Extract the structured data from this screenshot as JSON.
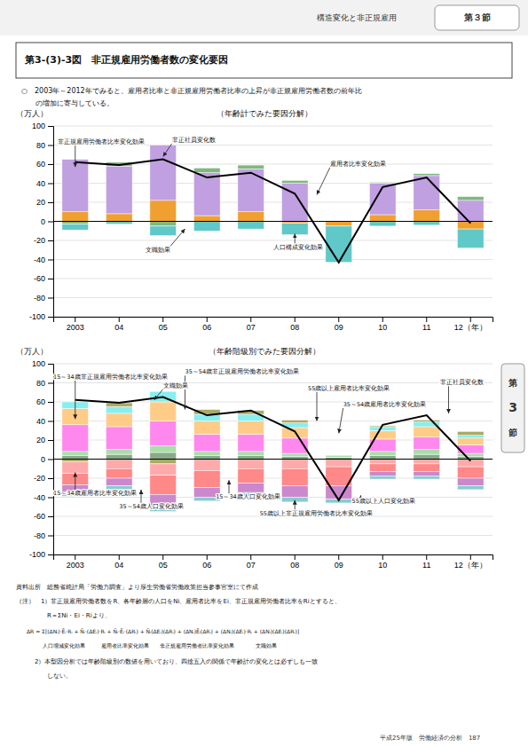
{
  "header_text": "構造変化と非正規雇用",
  "header_badge": "第３節",
  "title_box": "第3-(3)-3図　非正規雇用労働者数の変化要因",
  "bullet_text": [
    "○　2003年～2012年でみると、雇用者比率と非正規雇用労働者比率の上昇が非正規雇用労働者数の前年比",
    "　　の増加に寄与している。"
  ],
  "notes": [
    "資料出所　総務省統計局「労働力調査」より厚生労働省労働政策担当参事官室にて作成",
    "（注）　1）非正規雇用労働者数をR、各年齢層の人口をNi、雇用者比率をEi、非正規雇用労働者比率をRiとすると、",
    "　　　　　R＝ΣNi・Ei・Riより、",
    "ΔR = Σ[(ΔNᵢ)·Ēᵢ·Rᵢ + N̄ᵢ·(ΔEᵢ)·Rᵢ + N̄ᵢ·Ēᵢ·(ΔRᵢ) + N̄ᵢ(ΔEᵢ)(ΔRᵢ) + (ΔNᵢ)Ēᵢ(ΔRᵢ) + (ΔNᵢ)(ΔEᵢ)·Rᵢ + (ΔNᵢ)(ΔEᵢ)(ΔRᵢ)]",
    "人口増減変化効果　　　雇用者比率変化効果　　非正規雇用労働者比率変化効果　　　　文職効果",
    "　　　2）本型因分析では年齢階級別の数値を用いており、四捨五入の関係で年齢計の変化とは必ずしも一致",
    "　　　　　しない。"
  ],
  "page_text": "平成25年版　労働経済の分析　187",
  "side_tab": [
    "第",
    "3",
    "節"
  ],
  "chart_data": [
    {
      "type": "bar",
      "stacked": true,
      "grid": true,
      "title": "（年齢計でみた要因分解）",
      "ylabel": "（万人）",
      "categories": [
        "2003",
        "04",
        "05",
        "06",
        "07",
        "08",
        "09",
        "10",
        "11",
        "12（年）"
      ],
      "ylim": [
        -100,
        100
      ],
      "yticks": [
        -100,
        -80,
        -60,
        -40,
        -20,
        0,
        20,
        40,
        60,
        80,
        100
      ],
      "series": [
        {
          "color": "#60c8c8",
          "values": [
            -6,
            -3,
            -10,
            -10,
            -8,
            -12,
            -38,
            -5,
            -4,
            -20
          ]
        },
        {
          "color": "#f0a030",
          "values": [
            10,
            8,
            22,
            6,
            10,
            -2,
            -5,
            7,
            12,
            -8
          ]
        },
        {
          "color": "#c0a0e0",
          "values": [
            55,
            50,
            58,
            45,
            45,
            40,
            0,
            33,
            36,
            22
          ]
        },
        {
          "color": "#80b880",
          "values": [
            -3,
            4,
            -5,
            5,
            4,
            3,
            0,
            1,
            2,
            4
          ]
        },
        {
          "type": "line",
          "color": "#000000",
          "values": [
            62,
            59,
            65,
            46,
            51,
            29,
            -43,
            36,
            46,
            -2
          ]
        }
      ],
      "annotations": [
        {
          "text": "非正規雇用労働者比率変化効果",
          "x": 0,
          "y": 57,
          "text_x": -0.4,
          "text_y": 83
        },
        {
          "text": "非正社員変化数",
          "x": 2.0,
          "y": 68,
          "text_x": 2.2,
          "text_y": 85
        },
        {
          "text": "雇用者比率変化効果",
          "x": 5.5,
          "y": 28,
          "text_x": 5.8,
          "text_y": 60
        },
        {
          "text": "文職効果",
          "x": 2.5,
          "y": -8,
          "text_x": 1.6,
          "text_y": -30
        },
        {
          "text": "人口構成変化効果",
          "x": 5.0,
          "y": -13,
          "text_x": 4.5,
          "text_y": -28
        }
      ]
    },
    {
      "type": "bar",
      "stacked": true,
      "grid": true,
      "title": "（年齢階級別でみた要因分解）",
      "ylabel": "（万人）",
      "categories": [
        "2003",
        "04",
        "05",
        "06",
        "07",
        "08",
        "09",
        "10",
        "11",
        "12（年）"
      ],
      "ylim": [
        -100,
        100
      ],
      "yticks": [
        -100,
        -80,
        -60,
        -40,
        -20,
        0,
        20,
        40,
        60,
        80,
        100
      ],
      "series": [
        {
          "color": "#88cccc",
          "values": [
            -4,
            -4,
            -6,
            -4,
            -4,
            -5,
            -4,
            -3,
            -3,
            -4
          ]
        },
        {
          "color": "#cc88cc",
          "values": [
            -8,
            -8,
            -12,
            -10,
            -10,
            -12,
            -14,
            -5,
            -5,
            -8
          ]
        },
        {
          "color": "#ff8888",
          "values": [
            -12,
            -10,
            -20,
            -18,
            -15,
            -18,
            -20,
            -8,
            -8,
            -12
          ]
        },
        {
          "color": "#ffaaaa",
          "values": [
            -12,
            -10,
            -12,
            -12,
            -10,
            -10,
            -8,
            -5,
            -5,
            -8
          ]
        },
        {
          "color": "#88aa88",
          "values": [
            4,
            5,
            7,
            4,
            4,
            3,
            2,
            4,
            5,
            3
          ]
        },
        {
          "color": "#aaddaa",
          "values": [
            4,
            5,
            7,
            4,
            4,
            3,
            2,
            4,
            5,
            3
          ]
        },
        {
          "color": "#ff88ee",
          "values": [
            28,
            24,
            26,
            18,
            18,
            16,
            0,
            13,
            13,
            9
          ]
        },
        {
          "color": "#ffcc88",
          "values": [
            17,
            14,
            20,
            14,
            14,
            11,
            0,
            9,
            11,
            7
          ]
        },
        {
          "color": "#88eeee",
          "values": [
            7,
            7,
            11,
            7,
            7,
            5,
            0,
            4,
            5,
            3
          ]
        },
        {
          "color": "#aaaa66",
          "values": [
            -3,
            4,
            -5,
            5,
            4,
            3,
            0,
            1,
            2,
            4
          ]
        },
        {
          "type": "line",
          "color": "#000000",
          "values": [
            62,
            59,
            65,
            46,
            51,
            29,
            -43,
            36,
            46,
            -2
          ]
        }
      ],
      "annotations": [
        {
          "text": "15～34歳非正規雇用労働者比率変化効果",
          "x": 0,
          "y": 42,
          "text_x": -0.5,
          "text_y": 86
        },
        {
          "text": "35～54歳非正規雇用労働者比率変化効果",
          "x": 2.5,
          "y": 52,
          "text_x": 2.5,
          "text_y": 91
        },
        {
          "text": "文職効果",
          "x": 1.8,
          "y": 62,
          "text_x": 2.0,
          "text_y": 77
        },
        {
          "text": "55歳以上雇用者比率変化効果",
          "x": 5.5,
          "y": 40,
          "text_x": 5.3,
          "text_y": 74
        },
        {
          "text": "35～54歳雇用者比率変化効果",
          "x": 6.0,
          "y": 27,
          "text_x": 6.1,
          "text_y": 57
        },
        {
          "text": "非正社員変化数",
          "x": 8.5,
          "y": 48,
          "text_x": 8.3,
          "text_y": 80
        },
        {
          "text": "15～34歳雇用者比率変化効果",
          "x": 0,
          "y": -14,
          "text_x": -0.5,
          "text_y": -36
        },
        {
          "text": "15～34歳人口変化効果",
          "x": 3.5,
          "y": -22,
          "text_x": 3.2,
          "text_y": -40
        },
        {
          "text": "35～54歳人口変化効果",
          "x": 1.5,
          "y": -32,
          "text_x": 1.0,
          "text_y": -50
        },
        {
          "text": "55歳以上人口変化効果",
          "x": 6.5,
          "y": -38,
          "text_x": 6.3,
          "text_y": -44
        },
        {
          "text": "55歳以上非正規雇用労働者比率変化効果",
          "x": 5.0,
          "y": -43,
          "text_x": 4.2,
          "text_y": -57
        }
      ]
    }
  ]
}
